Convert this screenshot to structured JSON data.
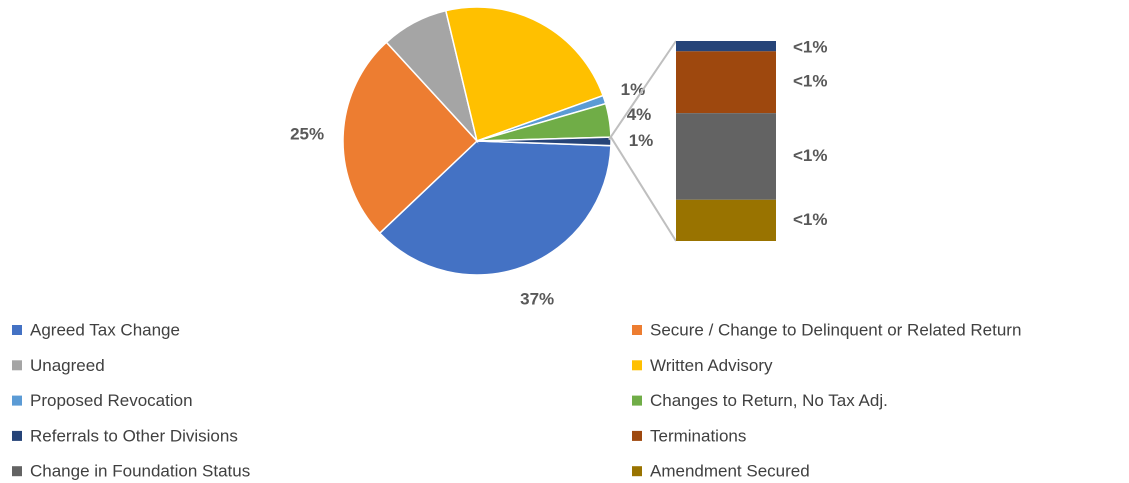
{
  "chart_data": {
    "type": "pie-of-bar",
    "categories": [
      "Agreed Tax Change",
      "Secure / Change to Delinquent or Related Return",
      "Unagreed",
      "Written Advisory",
      "Proposed Revocation",
      "Changes to Return, No Tax Adj.",
      "Referrals to Other Divisions",
      "Terminations",
      "Change in Foundation Status",
      "Amendment Secured"
    ],
    "values": [
      37,
      25,
      8,
      23,
      1,
      4,
      0.05,
      0.3,
      0.42,
      0.2
    ],
    "value_labels": [
      "37%",
      "25%",
      "8%",
      "23%",
      "1%",
      "4%",
      "<1%",
      "<1%",
      "<1%",
      "<1%"
    ],
    "colors": [
      "#4472c4",
      "#ed7d31",
      "#a5a5a5",
      "#ffc000",
      "#5b9bd5",
      "#70ad47",
      "#264478",
      "#9e480e",
      "#636363",
      "#997300"
    ],
    "split_count": 4,
    "other": {
      "value": 1,
      "value_label": "1%",
      "color": "#264478"
    },
    "legend": "bottom"
  }
}
